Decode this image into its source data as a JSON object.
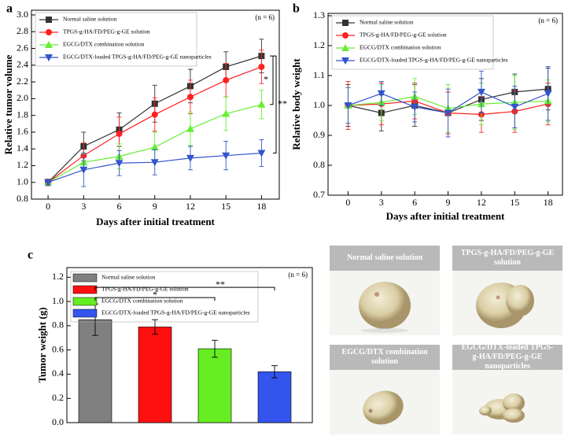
{
  "chart_data": [
    {
      "type": "line",
      "panel": "a",
      "xlabel": "Days after initial treatment",
      "ylabel": "Relative tumor volume",
      "note": "(n = 6)",
      "significance": [
        "*",
        "**"
      ],
      "x": [
        0,
        3,
        6,
        9,
        12,
        15,
        18
      ],
      "xlim": [
        -1.4,
        19.5
      ],
      "xticks": [
        0,
        3,
        6,
        9,
        12,
        15,
        18
      ],
      "ylim": [
        0.8,
        3.0
      ],
      "yticks": [
        0.8,
        {
          "value": 1,
          "label": "1.0"
        },
        1.2,
        1.4,
        1.6,
        1.8,
        {
          "value": 2,
          "label": "2.0"
        },
        2.2,
        2.4,
        2.6,
        2.8,
        {
          "value": 3,
          "label": "3.0"
        }
      ],
      "legend": "upper left",
      "series": [
        {
          "name": "Normal saline solution",
          "color": "#333333",
          "marker": "square",
          "values": [
            1.0,
            1.43,
            1.63,
            1.94,
            2.15,
            2.38,
            2.51
          ],
          "errors": [
            0.04,
            0.17,
            0.2,
            0.22,
            0.2,
            0.18,
            0.2
          ]
        },
        {
          "name": "TPGS-g-HA/FD/PEG-g-GE solution",
          "color": "#ff2020",
          "marker": "circle",
          "values": [
            1.0,
            1.32,
            1.58,
            1.81,
            2.02,
            2.22,
            2.38
          ],
          "errors": [
            0.04,
            0.15,
            0.2,
            0.2,
            0.2,
            0.2,
            0.2
          ]
        },
        {
          "name": "EGCG/DTX combination solution",
          "color": "#66ee33",
          "marker": "triangle-up",
          "values": [
            1.0,
            1.24,
            1.31,
            1.42,
            1.64,
            1.82,
            1.93
          ],
          "errors": [
            0.03,
            0.1,
            0.15,
            0.18,
            0.2,
            0.2,
            0.17
          ]
        },
        {
          "name": "EGCG/DTX-loaded TPGS-g-HA/FD/PEG-g-GE nanoparticles",
          "color": "#3355cc",
          "marker": "triangle-down",
          "values": [
            1.0,
            1.15,
            1.23,
            1.24,
            1.29,
            1.32,
            1.35
          ],
          "errors": [
            0.03,
            0.2,
            0.15,
            0.15,
            0.14,
            0.17,
            0.16
          ]
        }
      ]
    },
    {
      "type": "line",
      "panel": "b",
      "xlabel": "Days after initial treatment",
      "ylabel": "Relative body weight",
      "note": "(n = 6)",
      "x": [
        0,
        3,
        6,
        9,
        12,
        15,
        18
      ],
      "xlim": [
        -1.8,
        19.3
      ],
      "xticks": [
        0,
        3,
        6,
        9,
        12,
        15,
        18
      ],
      "ylim": [
        0.7,
        1.3
      ],
      "yticks": [
        0.7,
        0.8,
        0.9,
        {
          "value": 1,
          "label": "1.0"
        },
        1.1,
        1.2,
        1.3
      ],
      "legend": "upper left",
      "series": [
        {
          "name": "Normal saline solution",
          "color": "#333333",
          "marker": "square",
          "values": [
            1.0,
            0.975,
            1.0,
            0.975,
            1.02,
            1.045,
            1.055
          ],
          "errors": [
            0.07,
            0.06,
            0.07,
            0.07,
            0.07,
            0.06,
            0.07
          ]
        },
        {
          "name": "TPGS-g-HA/FD/PEG-g-GE solution",
          "color": "#ff2020",
          "marker": "circle",
          "values": [
            1.0,
            1.005,
            1.015,
            0.975,
            0.97,
            0.98,
            1.005
          ],
          "errors": [
            0.08,
            0.07,
            0.06,
            0.07,
            0.06,
            0.07,
            0.07
          ]
        },
        {
          "name": "EGCG/DTX combination solution",
          "color": "#66ee33",
          "marker": "triangle-up",
          "values": [
            1.0,
            1.01,
            1.03,
            0.99,
            1.005,
            1.01,
            1.015
          ],
          "errors": [
            0.06,
            0.06,
            0.06,
            0.08,
            0.07,
            0.09,
            0.07
          ]
        },
        {
          "name": "EGCG/DTX-loaded TPGS-g-HA/FD/PEG-g-GE nanoparticles",
          "color": "#3355cc",
          "marker": "triangle-down",
          "values": [
            1.0,
            1.04,
            0.995,
            0.975,
            1.045,
            0.995,
            1.04
          ],
          "errors": [
            0.06,
            0.04,
            0.05,
            0.08,
            0.07,
            0.07,
            0.09
          ]
        }
      ]
    },
    {
      "type": "bar",
      "panel": "c",
      "ylabel": "Tumor weight (g)",
      "note": "(n = 6)",
      "significance": [
        "*",
        "**"
      ],
      "categories": [
        "Normal saline solution",
        "TPGS-g-HA/FD/PEG-g-GE solution",
        "EGCG/DTX combination solution",
        "EGCG/DTX-loaded TPGS-g-HA/FD/PEG-g-GE nanoparticles"
      ],
      "values": [
        0.85,
        0.79,
        0.61,
        0.42
      ],
      "errors": [
        0.13,
        0.06,
        0.07,
        0.05
      ],
      "colors": [
        "#808080",
        "#ff1010",
        "#66ee22",
        "#3355ee"
      ],
      "ylim": [
        0,
        1.28
      ],
      "yticks": [
        {
          "value": 0,
          "label": "0.0"
        },
        0.2,
        0.4,
        0.6,
        0.8,
        {
          "value": 1,
          "label": "1.0"
        },
        1.2
      ],
      "legend": "upper left"
    }
  ],
  "photos": {
    "labels": [
      "Normal saline solution",
      "TPGS-g-HA/FD/PEG-g-GE solution",
      "EGCG/DTX combination solution",
      "EGCG/DTX-loaded TPGS-g-HA/FD/PEG-g-GE nanoparticles"
    ]
  }
}
